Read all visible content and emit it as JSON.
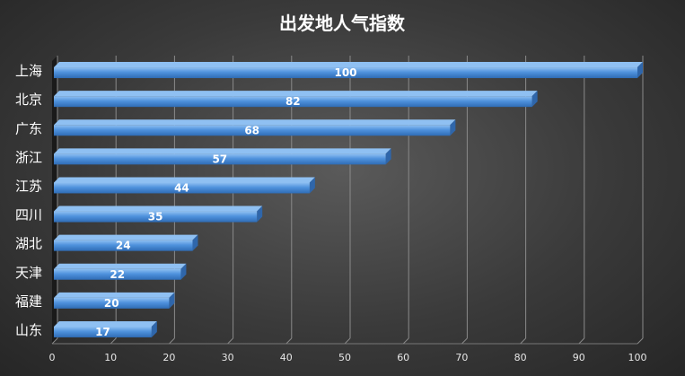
{
  "chart_data": {
    "type": "bar",
    "orientation": "horizontal",
    "title": "出发地人气指数",
    "categories": [
      "上海",
      "北京",
      "广东",
      "浙江",
      "江苏",
      "四川",
      "湖北",
      "天津",
      "福建",
      "山东"
    ],
    "values": [
      100,
      82,
      68,
      57,
      44,
      35,
      24,
      22,
      20,
      17
    ],
    "xlim": [
      0,
      100
    ],
    "xticks": [
      "0",
      "10",
      "20",
      "30",
      "40",
      "50",
      "60",
      "70",
      "80",
      "90",
      "100"
    ],
    "grid": true,
    "data_labels": true,
    "colors": {
      "bar": "#4f92dd",
      "bar_top": "#8fc0f2",
      "bar_side": "#2f66aa",
      "background": "#3a3a3a",
      "grid": "#8a8a8a"
    }
  }
}
